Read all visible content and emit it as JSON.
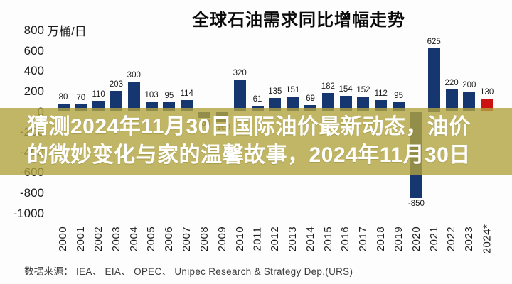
{
  "title": "全球石油需求同比增幅走势",
  "unit_label": "万桶/日",
  "source": "数据来源： IEA、 EIA、 OPEC、 Unipec Research & Strategy Dep.(URS)",
  "overlay": {
    "line1": "猜测2024年11月30日国际油价最新动态，油价",
    "line2": "的微妙变化与家的温馨故事，2024年11月30日",
    "background": "#b1a43e",
    "opacity": 0.8,
    "text_color": "#ffffff"
  },
  "colors": {
    "bar": "#16366f",
    "bar_highlight": "#cb1111",
    "label_text": "#1b1b1b",
    "axis_text": "#1c1c1c",
    "background": "#fdfdfd"
  },
  "chart_data": {
    "type": "bar",
    "title": "全球石油需求同比增幅走势",
    "xlabel": "",
    "ylabel": "万桶/日",
    "categories": [
      "2000",
      "2001",
      "2002",
      "2003",
      "2004",
      "2005",
      "2006",
      "2007",
      "2008",
      "2009",
      "2010",
      "2011",
      "2012",
      "2013",
      "2014",
      "2015",
      "2016",
      "2017",
      "2018",
      "2019",
      "2020",
      "2021",
      "2022",
      "2023",
      "2024*"
    ],
    "values": [
      80,
      70,
      110,
      203,
      300,
      103,
      95,
      114,
      -60,
      -100,
      320,
      61,
      135,
      151,
      69,
      182,
      154,
      152,
      112,
      95,
      -850,
      625,
      220,
      200,
      130
    ],
    "highlight_index": 24,
    "ylim": [
      -1000,
      800
    ],
    "yticks": [
      800,
      600,
      400,
      200,
      0,
      -200,
      -400,
      -600,
      -800,
      -1000
    ],
    "grid": false,
    "legend": "none",
    "source": "IEA、 EIA、 OPEC、 Unipec Research & Strategy Dep.(URS)"
  }
}
